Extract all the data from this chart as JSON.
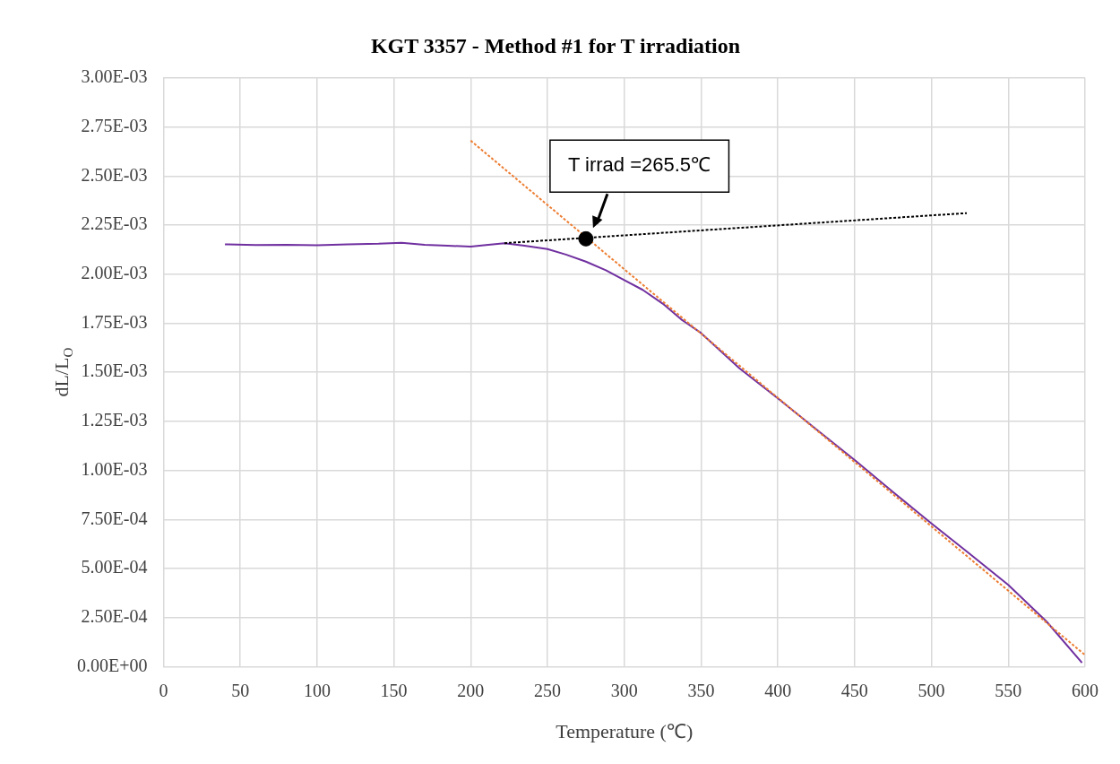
{
  "chart_data": {
    "type": "line",
    "title": "KGT 3357 - Method #1 for T irradiation",
    "xlabel": "Temperature (℃)",
    "ylabel": "dL/L$_{O}$",
    "series": [
      {
        "type": "line",
        "color": "#7030a0",
        "line_style": "solid",
        "x": [
          40,
          60,
          80,
          100,
          120,
          140,
          155,
          170,
          185,
          200,
          210,
          222,
          235,
          250,
          262,
          275,
          288,
          300,
          312,
          325,
          337,
          350,
          375,
          400,
          425,
          450,
          475,
          500,
          525,
          550,
          575,
          598
        ],
        "values": [
          0.002152,
          0.002148,
          0.00215,
          0.002147,
          0.002152,
          0.002155,
          0.00216,
          0.00215,
          0.002145,
          0.00214,
          0.002148,
          0.002158,
          0.002145,
          0.002128,
          0.0021,
          0.002064,
          0.00202,
          0.00197,
          0.00192,
          0.00185,
          0.00177,
          0.0017,
          0.00152,
          0.001367,
          0.00121,
          0.001053,
          0.00089,
          0.00073,
          0.000575,
          0.000417,
          0.00023,
          2e-05
        ]
      },
      {
        "type": "line",
        "color": "#ed7d31",
        "line_style": "dotted",
        "x": [
          200,
          600
        ],
        "values": [
          0.00268,
          6e-05
        ]
      },
      {
        "type": "line",
        "color": "#000000",
        "line_style": "dotted",
        "x": [
          222,
          523
        ],
        "values": [
          0.002158,
          0.002311
        ]
      },
      {
        "type": "scatter",
        "color": "#000000",
        "marker": "circle",
        "x": [
          275
        ],
        "values": [
          0.00218
        ]
      }
    ],
    "annotations": [
      "T irrad =265.5℃"
    ],
    "xlim": [
      0,
      600
    ],
    "xticks": [
      0,
      50,
      100,
      150,
      200,
      250,
      300,
      350,
      400,
      450,
      500,
      550,
      600
    ],
    "ylim": [
      0,
      0.003
    ],
    "yticks": [
      {
        "value": 0,
        "label": "0.00E+00"
      },
      {
        "value": 0.00025,
        "label": "2.50E-04"
      },
      {
        "value": 0.0005,
        "label": "5.00E-04"
      },
      {
        "value": 0.00075,
        "label": "7.50E-04"
      },
      {
        "value": 0.001,
        "label": "1.00E-03"
      },
      {
        "value": 0.00125,
        "label": "1.25E-03"
      },
      {
        "value": 0.0015,
        "label": "1.50E-03"
      },
      {
        "value": 0.00175,
        "label": "1.75E-03"
      },
      {
        "value": 0.002,
        "label": "2.00E-03"
      },
      {
        "value": 0.00225,
        "label": "2.25E-03"
      },
      {
        "value": 0.0025,
        "label": "2.50E-03"
      },
      {
        "value": 0.00275,
        "label": "2.75E-03"
      },
      {
        "value": 0.003,
        "label": "3.00E-03"
      }
    ],
    "grid": true,
    "legend": false
  }
}
